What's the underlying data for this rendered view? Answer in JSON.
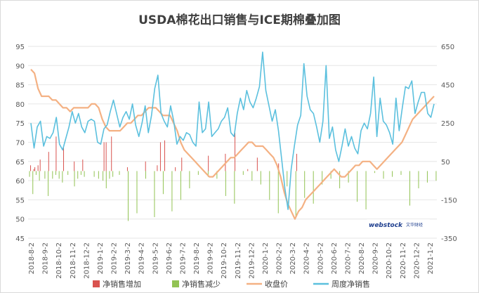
{
  "chart_data": {
    "type": "combo",
    "title": "USDA棉花出口销售与ICE期棉叠加图",
    "left_axis": {
      "ticks": [
        95,
        90,
        85,
        80,
        75,
        70,
        65,
        60,
        55,
        50,
        45
      ],
      "ylim": [
        45,
        95
      ]
    },
    "right_axis": {
      "ticks": [
        650,
        450,
        250,
        50,
        -150,
        -350
      ],
      "ylim": [
        -350,
        650
      ]
    },
    "x_tick_labels": [
      "2018-8-2",
      "2018-9-2",
      "2018-10-2",
      "2018-11-2",
      "2018-12-2",
      "2019-1-2",
      "2019-2-2",
      "2019-3-2",
      "2019-4-2",
      "2019-5-2",
      "2019-6-2",
      "2019-7-2",
      "2019-8-2",
      "2019-9-2",
      "2019-10-2",
      "2019-11-2",
      "2019-12-2",
      "2020-1-2",
      "2020-2-2",
      "2020-3-2",
      "2020-4-2",
      "2020-5-2",
      "2020-6-2",
      "2020-7-2",
      "2020-8-2",
      "2020-9-2",
      "2020-10-2",
      "2020-11-2",
      "2020-12-2",
      "2021-1-2"
    ],
    "series": [
      {
        "name": "净销售增加",
        "kind": "bar",
        "axis": "right",
        "color": "#d9534f",
        "values": [
          0,
          0,
          30,
          0,
          0,
          10,
          20,
          0,
          0,
          30,
          0,
          60,
          0,
          0,
          0,
          0,
          0,
          0,
          0,
          100,
          0,
          0,
          0,
          0,
          0,
          0,
          180,
          0,
          0,
          0,
          0,
          0,
          0,
          130,
          0,
          0,
          0,
          0,
          0,
          0,
          0,
          0,
          0,
          50,
          0,
          0,
          0,
          0,
          0,
          0,
          0,
          60,
          0,
          0,
          0,
          0,
          0,
          0,
          0,
          0,
          0,
          0,
          0,
          0,
          0,
          0,
          0,
          0,
          0,
          0,
          0,
          150,
          0,
          150,
          0,
          0,
          0,
          0,
          180,
          0,
          0,
          0,
          0,
          0,
          0,
          0,
          0,
          0,
          0,
          0,
          0,
          0,
          0,
          20,
          0,
          0,
          0,
          0,
          0,
          0,
          0,
          0,
          0,
          0,
          0,
          0,
          0,
          0,
          0,
          0,
          50,
          0,
          0,
          0,
          0,
          0,
          0,
          0,
          0,
          0,
          0,
          30,
          0,
          0,
          150,
          0,
          0,
          0,
          160,
          0,
          0,
          0,
          0,
          0,
          0,
          0,
          0,
          0,
          20,
          0,
          0,
          0,
          0,
          0,
          70,
          0,
          0,
          0,
          0,
          0,
          0,
          0,
          0,
          0,
          0,
          0,
          0,
          0,
          0,
          0,
          0,
          0,
          0,
          0,
          0,
          0,
          0,
          0,
          0,
          80,
          0,
          0,
          0,
          0,
          0,
          0,
          0,
          0,
          0,
          0,
          0,
          0,
          0,
          0,
          0,
          90,
          0,
          0,
          0,
          0,
          0,
          0,
          0,
          0,
          200,
          0,
          0,
          0,
          0,
          0,
          0,
          0,
          0,
          0,
          0,
          0,
          10,
          0,
          0,
          0,
          0,
          0,
          0,
          0,
          0,
          70,
          0,
          0,
          0,
          0,
          0,
          0,
          0,
          0,
          0,
          0,
          0,
          0,
          0,
          0,
          0,
          0,
          0,
          0,
          0,
          40,
          0,
          0,
          0,
          0,
          0,
          0,
          0,
          0,
          0,
          0,
          0,
          0,
          0,
          0,
          0,
          0,
          90,
          0,
          0,
          0,
          0,
          0,
          0,
          0,
          0,
          0,
          0,
          0,
          0,
          0,
          0,
          0,
          0,
          0,
          0,
          0,
          0,
          0,
          0,
          0,
          0,
          0,
          0,
          0,
          0,
          0,
          0,
          0,
          0,
          0,
          0,
          0,
          0,
          0,
          0,
          0,
          0,
          0,
          0,
          0,
          0,
          0,
          0,
          0,
          0,
          0,
          0,
          0,
          0,
          0,
          0,
          0,
          0,
          0,
          0,
          0,
          0,
          0,
          0,
          0,
          0,
          0,
          0,
          0,
          0,
          0,
          0,
          0,
          0,
          0,
          0,
          0,
          0,
          0,
          0,
          0,
          0,
          0,
          0,
          0,
          0,
          0,
          0,
          0,
          0,
          0,
          0,
          0,
          0,
          0,
          0,
          0,
          0,
          0,
          0,
          0,
          0,
          0,
          0,
          0,
          0,
          0,
          0,
          0,
          0,
          0,
          0,
          0,
          0,
          0,
          0,
          0,
          0,
          0,
          0,
          0,
          0,
          0,
          0,
          0,
          0,
          0,
          0,
          0,
          0,
          0,
          0,
          0
        ]
      },
      {
        "name": "净销售减少",
        "kind": "bar",
        "axis": "right",
        "color": "#92c353",
        "values": [
          0,
          -30,
          0,
          0,
          -120,
          0,
          0,
          -20,
          0,
          0,
          -50,
          0,
          0,
          0,
          0,
          -40,
          0,
          0,
          -130,
          0,
          0,
          0,
          -40,
          0,
          0,
          -20,
          0,
          0,
          -40,
          0,
          0,
          -60,
          0,
          0,
          0,
          0,
          -20,
          0,
          0,
          0,
          0,
          0,
          -80,
          0,
          0,
          -40,
          0,
          0,
          -20,
          0,
          0,
          -30,
          0,
          0,
          0,
          0,
          0,
          0,
          0,
          0,
          -30,
          0,
          0,
          0,
          -40,
          0,
          0,
          0,
          -50,
          0,
          0,
          -90,
          0,
          0,
          -40,
          0,
          0,
          -30,
          0,
          0,
          0,
          0,
          0,
          -20,
          0,
          0,
          0,
          0,
          0,
          0,
          0,
          -260,
          0,
          0,
          0,
          0,
          0,
          0,
          0,
          -220,
          0,
          0,
          0,
          0,
          0,
          0,
          0,
          -40,
          0,
          0,
          0,
          0,
          0,
          0,
          0,
          -240,
          0,
          0,
          0,
          0,
          0,
          0,
          0,
          -120,
          0,
          0,
          0,
          0,
          0,
          0,
          0,
          -210,
          0,
          0,
          0,
          0,
          0,
          0,
          0,
          -150,
          0,
          0,
          0,
          0,
          0,
          0,
          0,
          -90,
          0,
          0,
          0,
          0,
          0,
          0,
          0,
          -20,
          0,
          0,
          0,
          0,
          0,
          0,
          0,
          0,
          -30,
          0,
          0,
          0,
          0,
          0,
          0,
          0,
          -40,
          0,
          0,
          0,
          0,
          0,
          0,
          0,
          -130,
          0,
          0,
          0,
          0,
          0,
          0,
          0,
          -170,
          0,
          0,
          0,
          0,
          0,
          0,
          0,
          -20,
          0,
          0,
          0,
          0,
          0,
          0,
          0,
          -50,
          0,
          0,
          0,
          0,
          0,
          0,
          0,
          -70,
          0,
          0,
          0,
          0,
          0,
          0,
          0,
          -150,
          0,
          0,
          0,
          0,
          0,
          0,
          0,
          -220,
          0,
          0,
          0,
          0,
          0,
          0,
          0,
          -80,
          0,
          0,
          0,
          0,
          0,
          0,
          0,
          -240,
          0,
          0,
          0,
          0,
          0,
          0,
          0,
          -140,
          0,
          0,
          0,
          0,
          0,
          0,
          0,
          -170,
          0,
          0,
          0,
          0,
          0,
          0,
          0,
          -70,
          0,
          0,
          0,
          0,
          0,
          0,
          0,
          -40,
          0,
          0,
          0,
          0,
          0,
          0,
          0,
          -90,
          0,
          0,
          0,
          0,
          0,
          0,
          0,
          -60,
          0,
          0,
          0,
          0,
          0,
          0,
          0,
          -160,
          0,
          0,
          0,
          0,
          0,
          0,
          0,
          -200,
          0,
          0,
          0,
          0,
          0,
          0,
          0,
          -10,
          0,
          0,
          0,
          0,
          0,
          0,
          0,
          -40,
          0,
          0,
          0,
          0,
          0,
          0,
          0,
          -30,
          0,
          0,
          0,
          0,
          0,
          0,
          0,
          -20,
          0,
          0,
          0,
          0,
          0,
          0,
          0,
          -180,
          0,
          0,
          0,
          0,
          0,
          0,
          0,
          -90,
          0,
          0,
          0,
          0,
          0,
          0,
          0,
          -60,
          0,
          0,
          0,
          0,
          0,
          0,
          0,
          -50
        ]
      },
      {
        "name": "收盘价",
        "kind": "line",
        "axis": "left",
        "color": "#f4b183",
        "values": [
          89,
          88,
          84,
          82,
          82,
          82,
          81,
          81,
          80,
          79,
          79,
          78,
          79,
          79,
          79,
          79,
          79,
          80,
          80,
          79,
          76,
          74,
          73,
          73,
          73,
          73,
          74,
          75,
          75,
          76,
          77,
          77,
          78,
          79,
          79,
          79,
          78,
          77,
          77,
          77,
          75,
          73,
          70,
          68,
          67,
          66,
          65,
          64,
          63,
          62,
          61,
          61,
          62,
          63,
          64,
          65,
          66,
          66,
          67,
          68,
          69,
          70,
          70,
          69,
          69,
          69,
          68,
          67,
          66,
          64,
          61,
          57,
          54,
          52,
          50,
          52,
          53,
          55,
          56,
          57,
          58,
          59,
          60,
          61,
          62,
          63,
          62,
          61,
          61,
          62,
          63,
          64,
          64,
          65,
          65,
          65,
          64,
          63,
          64,
          65,
          66,
          67,
          68,
          69,
          70,
          72,
          74,
          76,
          77,
          78,
          79,
          80,
          81,
          82
        ]
      },
      {
        "name": "周度净销售",
        "kind": "line",
        "axis": "right",
        "color": "#5bc0de",
        "values": [
          250,
          120,
          230,
          260,
          130,
          180,
          170,
          200,
          280,
          140,
          110,
          170,
          230,
          310,
          250,
          300,
          230,
          200,
          260,
          270,
          260,
          150,
          140,
          220,
          240,
          310,
          370,
          300,
          230,
          280,
          310,
          270,
          350,
          240,
          180,
          250,
          340,
          200,
          290,
          430,
          500,
          300,
          260,
          230,
          340,
          260,
          140,
          180,
          160,
          200,
          190,
          150,
          130,
          360,
          200,
          220,
          360,
          180,
          200,
          220,
          260,
          280,
          330,
          200,
          180,
          300,
          380,
          320,
          420,
          360,
          330,
          380,
          440,
          620,
          420,
          340,
          260,
          320,
          210,
          60,
          -90,
          -200,
          10,
          130,
          240,
          290,
          560,
          390,
          320,
          300,
          230,
          150,
          260,
          550,
          170,
          230,
          110,
          50,
          130,
          220,
          130,
          180,
          120,
          90,
          210,
          250,
          220,
          300,
          490,
          180,
          380,
          260,
          240,
          200,
          140,
          380,
          210,
          330,
          440,
          430,
          470,
          300,
          360,
          410,
          410,
          300,
          280,
          350
        ]
      }
    ],
    "legend": [
      "净销售增加",
      "净销售减少",
      "收盘价",
      "周度净销售"
    ],
    "legend_position": "bottom",
    "watermark": {
      "brand": "webstock",
      "sub": "文华财经"
    }
  },
  "colors": {
    "bars_up": "#d9534f",
    "bars_down": "#92c353",
    "price": "#f4b183",
    "weekly": "#5bc0de",
    "grid": "#e6e6e6",
    "axis_text": "#595959"
  }
}
